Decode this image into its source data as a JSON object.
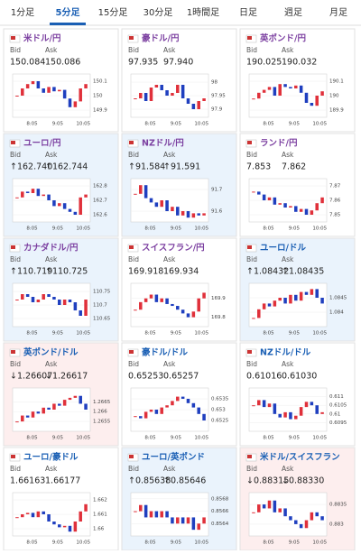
{
  "tabs": [
    "1分足",
    "5分足",
    "15分足",
    "30分足",
    "1時間足",
    "日足",
    "週足",
    "月足"
  ],
  "active_tab": 1,
  "labels": {
    "bid": "Bid",
    "ask": "Ask"
  },
  "x_labels": [
    "8:05",
    "9:05",
    "10:05"
  ],
  "cards": [
    {
      "title": "米ドル/円",
      "color": "#7b3fa0",
      "bg": "#ffffff",
      "bid": "150.084",
      "ask": "150.086",
      "chart": {
        "type": "candlestick",
        "ylim": [
          149.85,
          150.15
        ],
        "yticks": [
          150.1,
          150,
          149.9
        ],
        "closes": [
          150.0,
          150.05,
          150.08,
          150.1,
          150.05,
          150.02,
          150.06,
          150.03,
          150.04,
          149.98,
          149.92,
          149.96,
          150.05,
          150.08
        ]
      }
    },
    {
      "title": "豪ドル/円",
      "color": "#7b3fa0",
      "bg": "#ffffff",
      "bid": "97.935",
      "ask": "97.940",
      "chart": {
        "type": "candlestick",
        "ylim": [
          97.87,
          98.03
        ],
        "yticks": [
          98,
          97.95,
          97.9
        ],
        "closes": [
          97.94,
          97.96,
          97.93,
          97.98,
          97.99,
          97.97,
          97.95,
          97.96,
          97.99,
          97.94,
          97.92,
          97.9,
          97.93,
          97.94
        ]
      }
    },
    {
      "title": "英ポンド/円",
      "color": "#7b3fa0",
      "bg": "#ffffff",
      "bid": "190.025",
      "ask": "190.032",
      "chart": {
        "type": "candlestick",
        "ylim": [
          189.85,
          190.15
        ],
        "yticks": [
          190.1,
          190,
          189.9
        ],
        "closes": [
          189.98,
          190.02,
          190.04,
          190.06,
          190.0,
          190.08,
          190.06,
          190.05,
          190.07,
          190.02,
          189.95,
          189.93,
          190.0,
          190.03
        ]
      }
    },
    {
      "title": "ユーロ/円",
      "color": "#7b3fa0",
      "bg": "#eaf3fc",
      "bid": "↑162.740",
      "ask": "↑162.744",
      "chart": {
        "type": "candlestick",
        "ylim": [
          162.55,
          162.85
        ],
        "yticks": [
          162.8,
          162.7,
          162.6
        ],
        "closes": [
          162.72,
          162.76,
          162.75,
          162.78,
          162.73,
          162.74,
          162.7,
          162.66,
          162.68,
          162.64,
          162.62,
          162.6,
          162.72,
          162.74
        ]
      }
    },
    {
      "title": "NZドル/円",
      "color": "#7b3fa0",
      "bg": "#eaf3fc",
      "bid": "↑91.584",
      "ask": "↑91.591",
      "chart": {
        "type": "candlestick",
        "ylim": [
          91.55,
          91.75
        ],
        "yticks": [
          91.7,
          91.6
        ],
        "closes": [
          91.68,
          91.72,
          91.66,
          91.64,
          91.62,
          91.65,
          91.6,
          91.62,
          91.58,
          91.6,
          91.57,
          91.59,
          91.58,
          91.59
        ]
      }
    },
    {
      "title": "ランド/円",
      "color": "#7b3fa0",
      "bg": "#ffffff",
      "bid": "7.853",
      "ask": "7.862",
      "chart": {
        "type": "candlestick",
        "ylim": [
          7.845,
          7.875
        ],
        "yticks": [
          7.87,
          7.86,
          7.85
        ],
        "closes": [
          7.866,
          7.864,
          7.86,
          7.862,
          7.857,
          7.858,
          7.855,
          7.856,
          7.852,
          7.854,
          7.85,
          7.853,
          7.858,
          7.862
        ]
      }
    },
    {
      "title": "カナダドル/円",
      "color": "#7b3fa0",
      "bg": "#eaf3fc",
      "bid": "↑110.719",
      "ask": "↑110.725",
      "chart": {
        "type": "candlestick",
        "ylim": [
          110.62,
          110.78
        ],
        "yticks": [
          110.75,
          110.7,
          110.65
        ],
        "closes": [
          110.72,
          110.74,
          110.73,
          110.71,
          110.72,
          110.74,
          110.73,
          110.72,
          110.7,
          110.72,
          110.71,
          110.68,
          110.66,
          110.72
        ]
      }
    },
    {
      "title": "スイスフラン/円",
      "color": "#7b3fa0",
      "bg": "#ffffff",
      "bid": "169.918",
      "ask": "169.934",
      "chart": {
        "type": "candlestick",
        "ylim": [
          169.75,
          169.98
        ],
        "yticks": [
          169.9,
          169.8
        ],
        "closes": [
          169.84,
          169.88,
          169.9,
          169.92,
          169.88,
          169.9,
          169.87,
          169.86,
          169.84,
          169.82,
          169.8,
          169.83,
          169.9,
          169.93
        ]
      }
    },
    {
      "title": "ユーロ/ドル",
      "color": "#1a5fb4",
      "bg": "#eaf3fc",
      "bid": "↑1.08432",
      "ask": "↑1.08435",
      "chart": {
        "type": "candlestick",
        "ylim": [
          1.0835,
          1.085
        ],
        "yticks": [
          1.0845,
          1.084
        ],
        "closes": [
          1.0838,
          1.0841,
          1.0843,
          1.0842,
          1.0844,
          1.0845,
          1.0843,
          1.0846,
          1.0844,
          1.0847,
          1.0846,
          1.0848,
          1.0845,
          1.0843
        ]
      }
    },
    {
      "title": "英ポンド/ドル",
      "color": "#1a5fb4",
      "bg": "#fdeeee",
      "bid": "↓1.26607",
      "ask": "↓1.26617",
      "chart": {
        "type": "candlestick",
        "ylim": [
          1.265,
          1.2672
        ],
        "yticks": [
          1.2665,
          1.266,
          1.2655
        ],
        "closes": [
          1.2655,
          1.2658,
          1.2657,
          1.266,
          1.2659,
          1.2662,
          1.2661,
          1.2664,
          1.2663,
          1.2666,
          1.2667,
          1.2668,
          1.2664,
          1.2661
        ]
      }
    },
    {
      "title": "豪ドル/ドル",
      "color": "#1a5fb4",
      "bg": "#ffffff",
      "bid": "0.65253",
      "ask": "0.65257",
      "chart": {
        "type": "candlestick",
        "ylim": [
          0.652,
          0.654
        ],
        "yticks": [
          0.6535,
          0.653,
          0.6525
        ],
        "closes": [
          0.6527,
          0.6526,
          0.6529,
          0.653,
          0.6528,
          0.6531,
          0.6532,
          0.6534,
          0.6536,
          0.6535,
          0.6533,
          0.6531,
          0.6528,
          0.6525
        ]
      }
    },
    {
      "title": "NZドル/ドル",
      "color": "#1a5fb4",
      "bg": "#ffffff",
      "bid": "0.61016",
      "ask": "0.61030",
      "chart": {
        "type": "candlestick",
        "ylim": [
          0.609,
          0.6115
        ],
        "yticks": [
          0.611,
          0.6105,
          0.61,
          0.6095
        ],
        "closes": [
          0.6105,
          0.6108,
          0.6104,
          0.6106,
          0.61,
          0.6098,
          0.6101,
          0.6097,
          0.6099,
          0.6104,
          0.6107,
          0.6105,
          0.61,
          0.6101
        ]
      }
    },
    {
      "title": "ユーロ/豪ドル",
      "color": "#1a5fb4",
      "bg": "#ffffff",
      "bid": "1.66163",
      "ask": "1.66177",
      "chart": {
        "type": "candlestick",
        "ylim": [
          1.6595,
          1.6625
        ],
        "yticks": [
          1.662,
          1.661,
          1.66
        ],
        "closes": [
          1.6608,
          1.661,
          1.6611,
          1.6608,
          1.6612,
          1.661,
          1.6605,
          1.6603,
          1.6601,
          1.6602,
          1.6598,
          1.6605,
          1.6612,
          1.6617
        ]
      }
    },
    {
      "title": "ユーロ/英ポンド",
      "color": "#1a5fb4",
      "bg": "#eaf3fc",
      "bid": "↑0.85638",
      "ask": "↑0.85646",
      "chart": {
        "type": "candlestick",
        "ylim": [
          0.8562,
          0.8569
        ],
        "yticks": [
          0.8568,
          0.8566,
          0.8564
        ],
        "closes": [
          0.8566,
          0.8567,
          0.8565,
          0.8566,
          0.8565,
          0.8566,
          0.8565,
          0.8564,
          0.8565,
          0.8564,
          0.8565,
          0.8563,
          0.8564,
          0.8565
        ]
      }
    },
    {
      "title": "米ドル/スイスフラン",
      "color": "#1a5fb4",
      "bg": "#fdeeee",
      "bid": "↓0.88315",
      "ask": "↓0.88330",
      "chart": {
        "type": "candlestick",
        "ylim": [
          0.8827,
          0.8838
        ],
        "yticks": [
          0.8835,
          0.883
        ],
        "closes": [
          0.8833,
          0.8835,
          0.8834,
          0.8836,
          0.8833,
          0.8834,
          0.8832,
          0.8831,
          0.883,
          0.8829,
          0.8831,
          0.8833,
          0.8832,
          0.8831
        ]
      }
    }
  ]
}
